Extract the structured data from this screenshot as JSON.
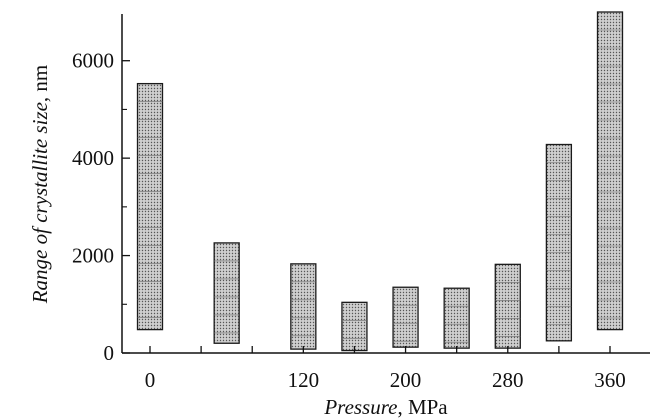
{
  "chart_data": {
    "type": "bar",
    "subtype": "floating-range",
    "title": "",
    "xlabel": {
      "italic": "Pressure",
      "plain": ", MPa"
    },
    "ylabel": {
      "italic": "Range of crystallite size",
      "plain": ", nm"
    },
    "x_ticks": [
      0,
      40,
      80,
      120,
      160,
      200,
      240,
      280,
      320,
      360,
      400
    ],
    "x_tick_labels": [
      "0",
      "120",
      "200",
      "280",
      "360"
    ],
    "x_tick_label_values": [
      0,
      120,
      200,
      280,
      360
    ],
    "xlim": [
      0,
      400
    ],
    "y_ticks": [
      0,
      2000,
      4000,
      6000
    ],
    "y_minor_ticks": [
      1000,
      3000,
      5000
    ],
    "ylim": [
      0,
      7000
    ],
    "series": [
      {
        "x": [
          0,
          60,
          120,
          160,
          200,
          240,
          280,
          320,
          360
        ],
        "low": [
          480,
          200,
          80,
          50,
          120,
          100,
          100,
          250,
          480
        ],
        "high": [
          5530,
          2260,
          1830,
          1040,
          1350,
          1330,
          1820,
          4280,
          7000
        ]
      }
    ],
    "grid": false,
    "legend": "none",
    "colors": {
      "bar_fill": "#bdbdbd",
      "bar_stroke": "#1a1a1a",
      "axis": "#111111"
    }
  }
}
